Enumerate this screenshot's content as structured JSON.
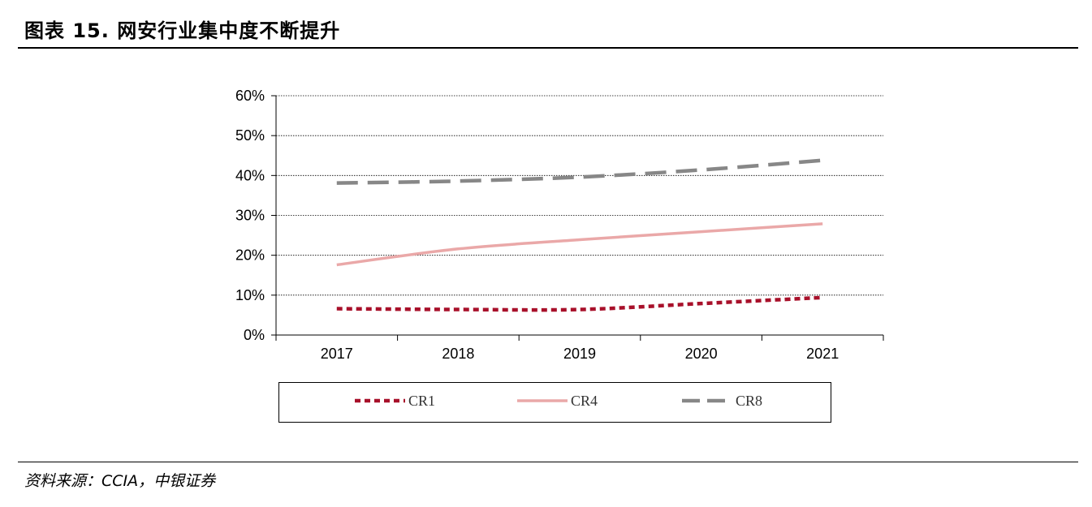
{
  "header": {
    "title": "图表 15. 网安行业集中度不断提升"
  },
  "footer": {
    "source": "资料来源：CCIA，中银证券"
  },
  "colors": {
    "CR1": "#a8102a",
    "CR4": "#eaa8a8",
    "CR8": "#878787",
    "grid": "#000000",
    "axis": "#000000"
  },
  "chart_data": {
    "type": "line",
    "title": "",
    "xlabel": "",
    "ylabel": "",
    "categories": [
      "2017",
      "2018",
      "2019",
      "2020",
      "2021"
    ],
    "y_ticks": [
      "0%",
      "10%",
      "20%",
      "30%",
      "40%",
      "50%",
      "60%"
    ],
    "ylim": [
      0,
      60
    ],
    "y_unit": "%",
    "grid": "horizontal dotted",
    "legend_position": "bottom",
    "series": [
      {
        "name": "CR1",
        "values": [
          6.6,
          6.4,
          6.4,
          7.9,
          9.4
        ],
        "style": "short-dash"
      },
      {
        "name": "CR4",
        "values": [
          17.6,
          21.6,
          23.9,
          25.9,
          27.9
        ],
        "style": "solid"
      },
      {
        "name": "CR8",
        "values": [
          38.1,
          38.6,
          39.6,
          41.4,
          43.8
        ],
        "style": "long-dash"
      }
    ]
  }
}
